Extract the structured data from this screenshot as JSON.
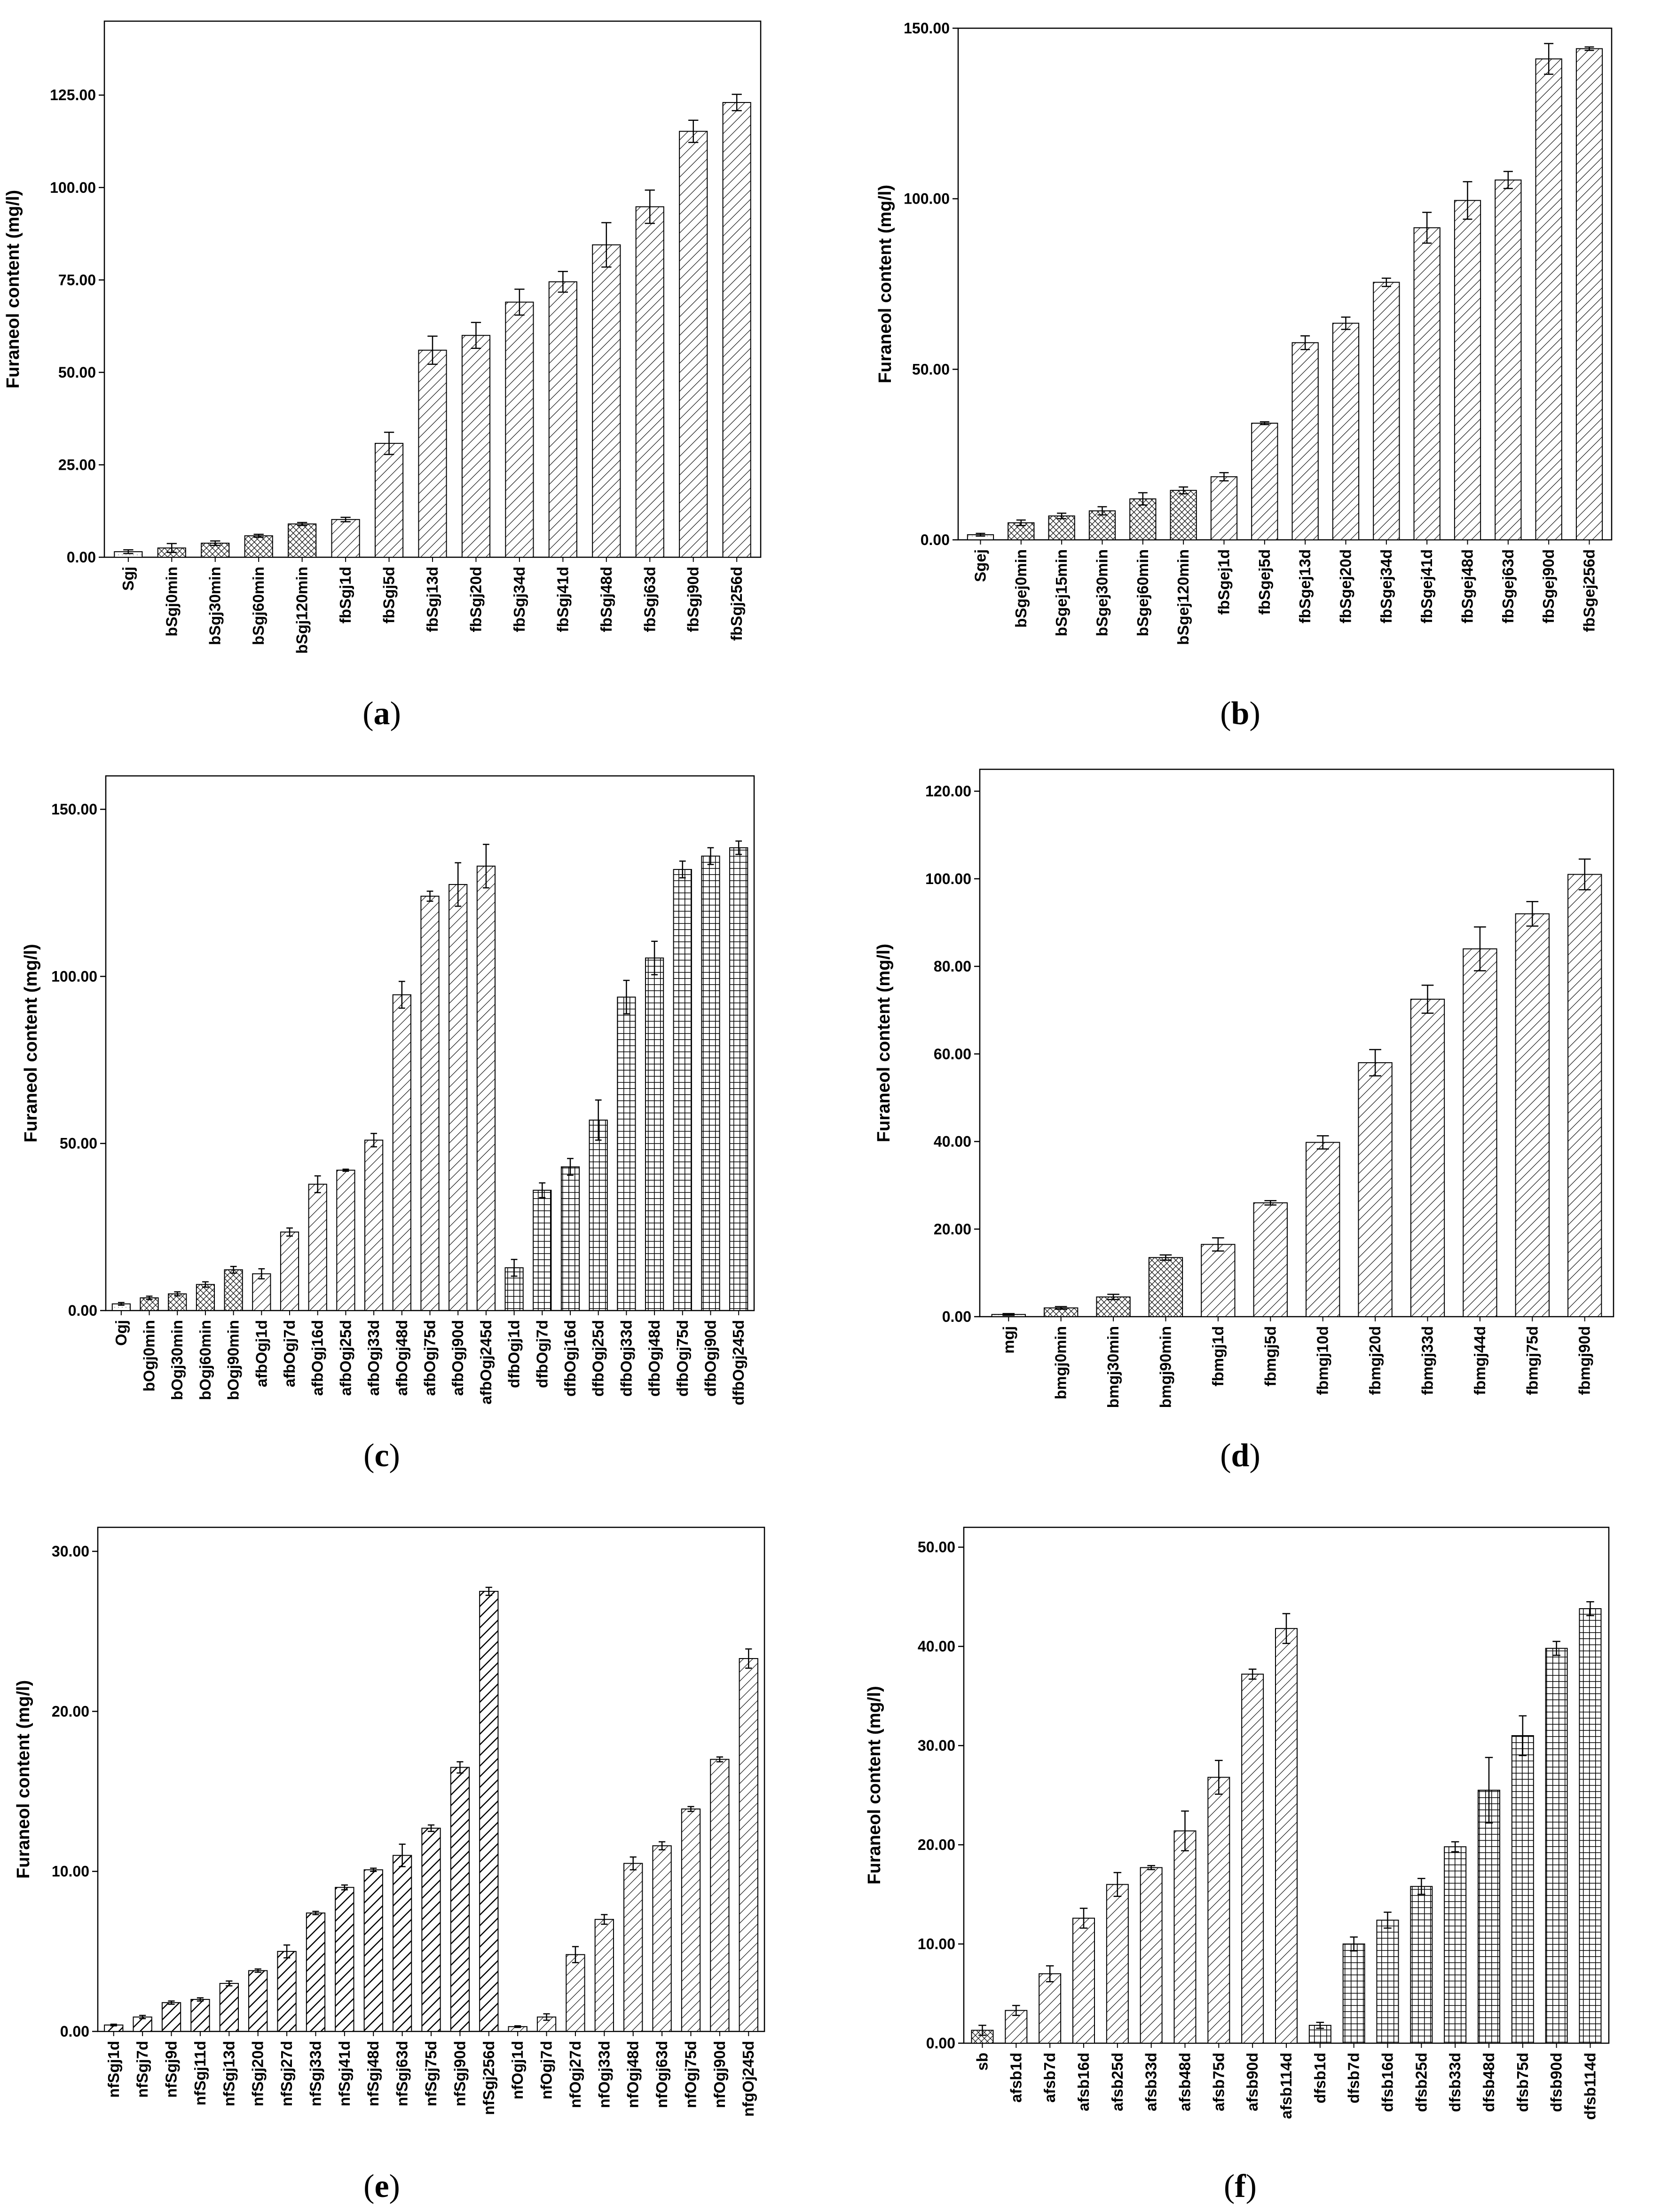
{
  "figure": {
    "panel_labels": [
      {
        "open": "(",
        "letter": "a",
        "close": ")"
      },
      {
        "open": "(",
        "letter": "b",
        "close": ")"
      },
      {
        "open": "(",
        "letter": "c",
        "close": ")"
      },
      {
        "open": "(",
        "letter": "d",
        "close": ")"
      },
      {
        "open": "(",
        "letter": "e",
        "close": ")"
      },
      {
        "open": "(",
        "letter": "f",
        "close": ")"
      }
    ]
  },
  "chart_data": [
    {
      "type": "bar",
      "panel": "a",
      "ylabel": "Furaneol content (mg/l)",
      "ylim": [
        0,
        145
      ],
      "yticks": [
        0,
        25,
        50,
        75,
        100,
        125
      ],
      "ytick_labels": [
        "0.00",
        "25.00",
        "50.00",
        "75.00",
        "100.00",
        "125.00"
      ],
      "categories": [
        "Sgj",
        "bSgj0min",
        "bSgj30min",
        "bSgj60min",
        "bSgj120min",
        "fbSgj1d",
        "fbSgj5d",
        "fbSgj13d",
        "fbSgj20d",
        "fbSgj34d",
        "fbSgj41d",
        "fbSgj48d",
        "fbSgj63d",
        "fbSgj90d",
        "fbSgj256d"
      ],
      "values": [
        1.5,
        2.5,
        3.8,
        5.8,
        9.0,
        10.2,
        30.8,
        56.0,
        60.0,
        69.0,
        74.5,
        84.5,
        94.8,
        115.2,
        123.0
      ],
      "errors": [
        0.5,
        1.2,
        0.6,
        0.4,
        0.4,
        0.6,
        3.0,
        3.8,
        3.5,
        3.5,
        2.8,
        6.0,
        4.5,
        3.0,
        2.2
      ],
      "patterns": [
        "dots",
        "cross",
        "cross",
        "cross",
        "cross",
        "diag",
        "diag",
        "diag",
        "diag",
        "diag",
        "diag",
        "diag",
        "diag",
        "diag",
        "diag"
      ]
    },
    {
      "type": "bar",
      "panel": "b",
      "ylabel": "Furaneol content (mg/l)",
      "ylim": [
        0,
        150
      ],
      "yticks": [
        0,
        50,
        100,
        150
      ],
      "ytick_labels": [
        "0.00",
        "50.00",
        "100.00",
        "150.00"
      ],
      "categories": [
        "Sgej",
        "bSgej0min",
        "bSgej15min",
        "bSgej30min",
        "bSgej60min",
        "bSgej120min",
        "fbSgej1d",
        "fbSgej5d",
        "fbSgej13d",
        "fbSgej20d",
        "fbSgej34d",
        "fbSgej41d",
        "fbSgej48d",
        "fbSgej63d",
        "fbSgej90d",
        "fbSgej256d"
      ],
      "values": [
        1.5,
        5.0,
        7.0,
        8.5,
        12.0,
        14.5,
        18.5,
        34.2,
        57.8,
        63.5,
        75.5,
        91.5,
        99.5,
        105.5,
        141.0,
        144.0
      ],
      "errors": [
        0.4,
        0.8,
        0.8,
        1.2,
        1.8,
        1.0,
        1.2,
        0.4,
        2.0,
        1.8,
        1.2,
        4.5,
        5.5,
        2.5,
        4.5,
        0.5
      ],
      "patterns": [
        "dots",
        "cross",
        "cross",
        "cross",
        "cross",
        "cross",
        "diag",
        "diag",
        "diag",
        "diag",
        "diag",
        "diag",
        "diag",
        "diag",
        "diag",
        "diag"
      ]
    },
    {
      "type": "bar",
      "panel": "c",
      "ylabel": "Furaneol content (mg/l)",
      "ylim": [
        0,
        160
      ],
      "yticks": [
        0,
        50,
        100,
        150
      ],
      "ytick_labels": [
        "0.00",
        "50.00",
        "100.00",
        "150.00"
      ],
      "categories": [
        "Ogj",
        "bOgj0min",
        "bOgj30min",
        "bOgj60min",
        "bOgj90min",
        "afbOgj1d",
        "afbOgj7d",
        "afbOgj16d",
        "afbOgj25d",
        "afbOgj33d",
        "afbOgj48d",
        "afbOgj75d",
        "afbOgj90d",
        "afbOgj245d",
        "dfbOgj1d",
        "dfbOgj7d",
        "dfbOgj16d",
        "dfbOgj25d",
        "dfbOgj33d",
        "dfbOgj48d",
        "dfbOgj75d",
        "dfbOgj90d",
        "dfbOgj245d"
      ],
      "values": [
        2.0,
        3.8,
        5.0,
        7.8,
        12.2,
        11.0,
        23.5,
        37.8,
        42.0,
        51.0,
        94.5,
        124.0,
        127.5,
        133.0,
        12.8,
        36.0,
        43.0,
        57.0,
        93.8,
        105.5,
        132.0,
        136.0,
        138.5
      ],
      "errors": [
        0.4,
        0.5,
        0.6,
        0.8,
        1.0,
        1.5,
        1.2,
        2.5,
        0.3,
        2.0,
        4.0,
        1.5,
        6.5,
        6.5,
        2.5,
        2.2,
        2.5,
        6.0,
        5.0,
        5.0,
        2.5,
        2.5,
        2.0
      ],
      "patterns": [
        "dots",
        "cross",
        "cross",
        "cross",
        "cross",
        "diag",
        "diag",
        "diag",
        "diag",
        "diag",
        "diag",
        "diag",
        "diag",
        "diag",
        "grid",
        "grid",
        "grid",
        "grid",
        "grid",
        "grid",
        "grid",
        "grid",
        "grid"
      ]
    },
    {
      "type": "bar",
      "panel": "d",
      "ylabel": "Furaneol content (mg/l)",
      "ylim": [
        0,
        125
      ],
      "yticks": [
        0,
        20,
        40,
        60,
        80,
        100,
        120
      ],
      "ytick_labels": [
        "0.00",
        "20.00",
        "40.00",
        "60.00",
        "80.00",
        "100.00",
        "120.00"
      ],
      "categories": [
        "mgj",
        "bmgj0min",
        "bmgj30min",
        "bmgj90min",
        "fbmgj1d",
        "fbmgj5d",
        "fbmgj10d",
        "fbmgj20d",
        "fbmgj33d",
        "fbmgj44d",
        "fbmgj75d",
        "fbmgj90d"
      ],
      "values": [
        0.5,
        2.0,
        4.5,
        13.5,
        16.5,
        26.0,
        39.8,
        58.0,
        72.5,
        84.0,
        92.0,
        101.0
      ],
      "errors": [
        0.2,
        0.3,
        0.6,
        0.6,
        1.5,
        0.5,
        1.5,
        3.0,
        3.2,
        5.0,
        2.8,
        3.5
      ],
      "patterns": [
        "dots",
        "cross",
        "cross",
        "cross",
        "diag",
        "diag",
        "diag",
        "diag",
        "diag",
        "diag",
        "diag",
        "diag"
      ]
    },
    {
      "type": "bar",
      "panel": "e",
      "ylabel": "Furaneol content (mg/l)",
      "ylim": [
        0,
        31.5
      ],
      "yticks": [
        0,
        10,
        20,
        30
      ],
      "ytick_labels": [
        "0.00",
        "10.00",
        "20.00",
        "30.00"
      ],
      "categories": [
        "nfSgj1d",
        "nfSgj7d",
        "nfSgj9d",
        "nfSgj11d",
        "nfSgj13d",
        "nfSgj20d",
        "nfSgj27d",
        "nfSgj33d",
        "nfSgj41d",
        "nfSgj48d",
        "nfSgj63d",
        "nfSgj75d",
        "nfSgj90d",
        "nfSgj256d",
        "nfOgj1d",
        "nfOgj7d",
        "nfOgj27d",
        "nfOgj33d",
        "nfOgj48d",
        "nfOgj63d",
        "nfOgj75d",
        "nfOgj90d",
        "nfgOj245d"
      ],
      "values": [
        0.4,
        0.9,
        1.8,
        2.0,
        3.0,
        3.8,
        5.0,
        7.4,
        9.0,
        10.1,
        11.0,
        12.7,
        16.5,
        27.5,
        0.3,
        0.9,
        4.8,
        7.0,
        10.5,
        11.6,
        13.9,
        17.0,
        23.3
      ],
      "errors": [
        0.05,
        0.1,
        0.1,
        0.1,
        0.15,
        0.1,
        0.4,
        0.1,
        0.15,
        0.1,
        0.7,
        0.2,
        0.35,
        0.25,
        0.05,
        0.2,
        0.5,
        0.3,
        0.4,
        0.25,
        0.15,
        0.15,
        0.6
      ],
      "patterns": [
        "bold",
        "bold",
        "bold",
        "bold",
        "bold",
        "bold",
        "bold",
        "bold",
        "bold",
        "bold",
        "bold",
        "bold",
        "bold",
        "bold",
        "diag",
        "diag",
        "diag",
        "diag",
        "diag",
        "diag",
        "diag",
        "diag",
        "diag"
      ]
    },
    {
      "type": "bar",
      "panel": "f",
      "ylabel": "Furaneol content (mg/l)",
      "ylim": [
        0,
        52
      ],
      "yticks": [
        0,
        10,
        20,
        30,
        40,
        50
      ],
      "ytick_labels": [
        "0.00",
        "10.00",
        "20.00",
        "30.00",
        "40.00",
        "50.00"
      ],
      "categories": [
        "sb",
        "afsb1d",
        "afsb7d",
        "afsb16d",
        "afsb25d",
        "afsb33d",
        "afsb48d",
        "afsb75d",
        "afsb90d",
        "afsb114d",
        "dfsb1d",
        "dfsb7d",
        "dfsb16d",
        "dfsb25d",
        "dfsb33d",
        "dfsb48d",
        "dfsb75d",
        "dfsb90d",
        "dfsb114d"
      ],
      "values": [
        1.3,
        3.3,
        7.0,
        12.6,
        16.0,
        17.7,
        21.4,
        26.8,
        37.2,
        41.8,
        1.8,
        10.0,
        12.4,
        15.8,
        19.8,
        25.5,
        31.0,
        39.8,
        43.8
      ],
      "errors": [
        0.5,
        0.5,
        0.8,
        1.0,
        1.2,
        0.2,
        2.0,
        1.7,
        0.5,
        1.5,
        0.3,
        0.7,
        0.8,
        0.8,
        0.5,
        3.3,
        2.0,
        0.7,
        0.7
      ],
      "patterns": [
        "cross",
        "diag",
        "diag",
        "diag",
        "diag",
        "diag",
        "diag",
        "diag",
        "diag",
        "diag",
        "grid",
        "grid",
        "grid",
        "grid",
        "grid",
        "grid",
        "grid",
        "grid",
        "grid"
      ]
    }
  ]
}
